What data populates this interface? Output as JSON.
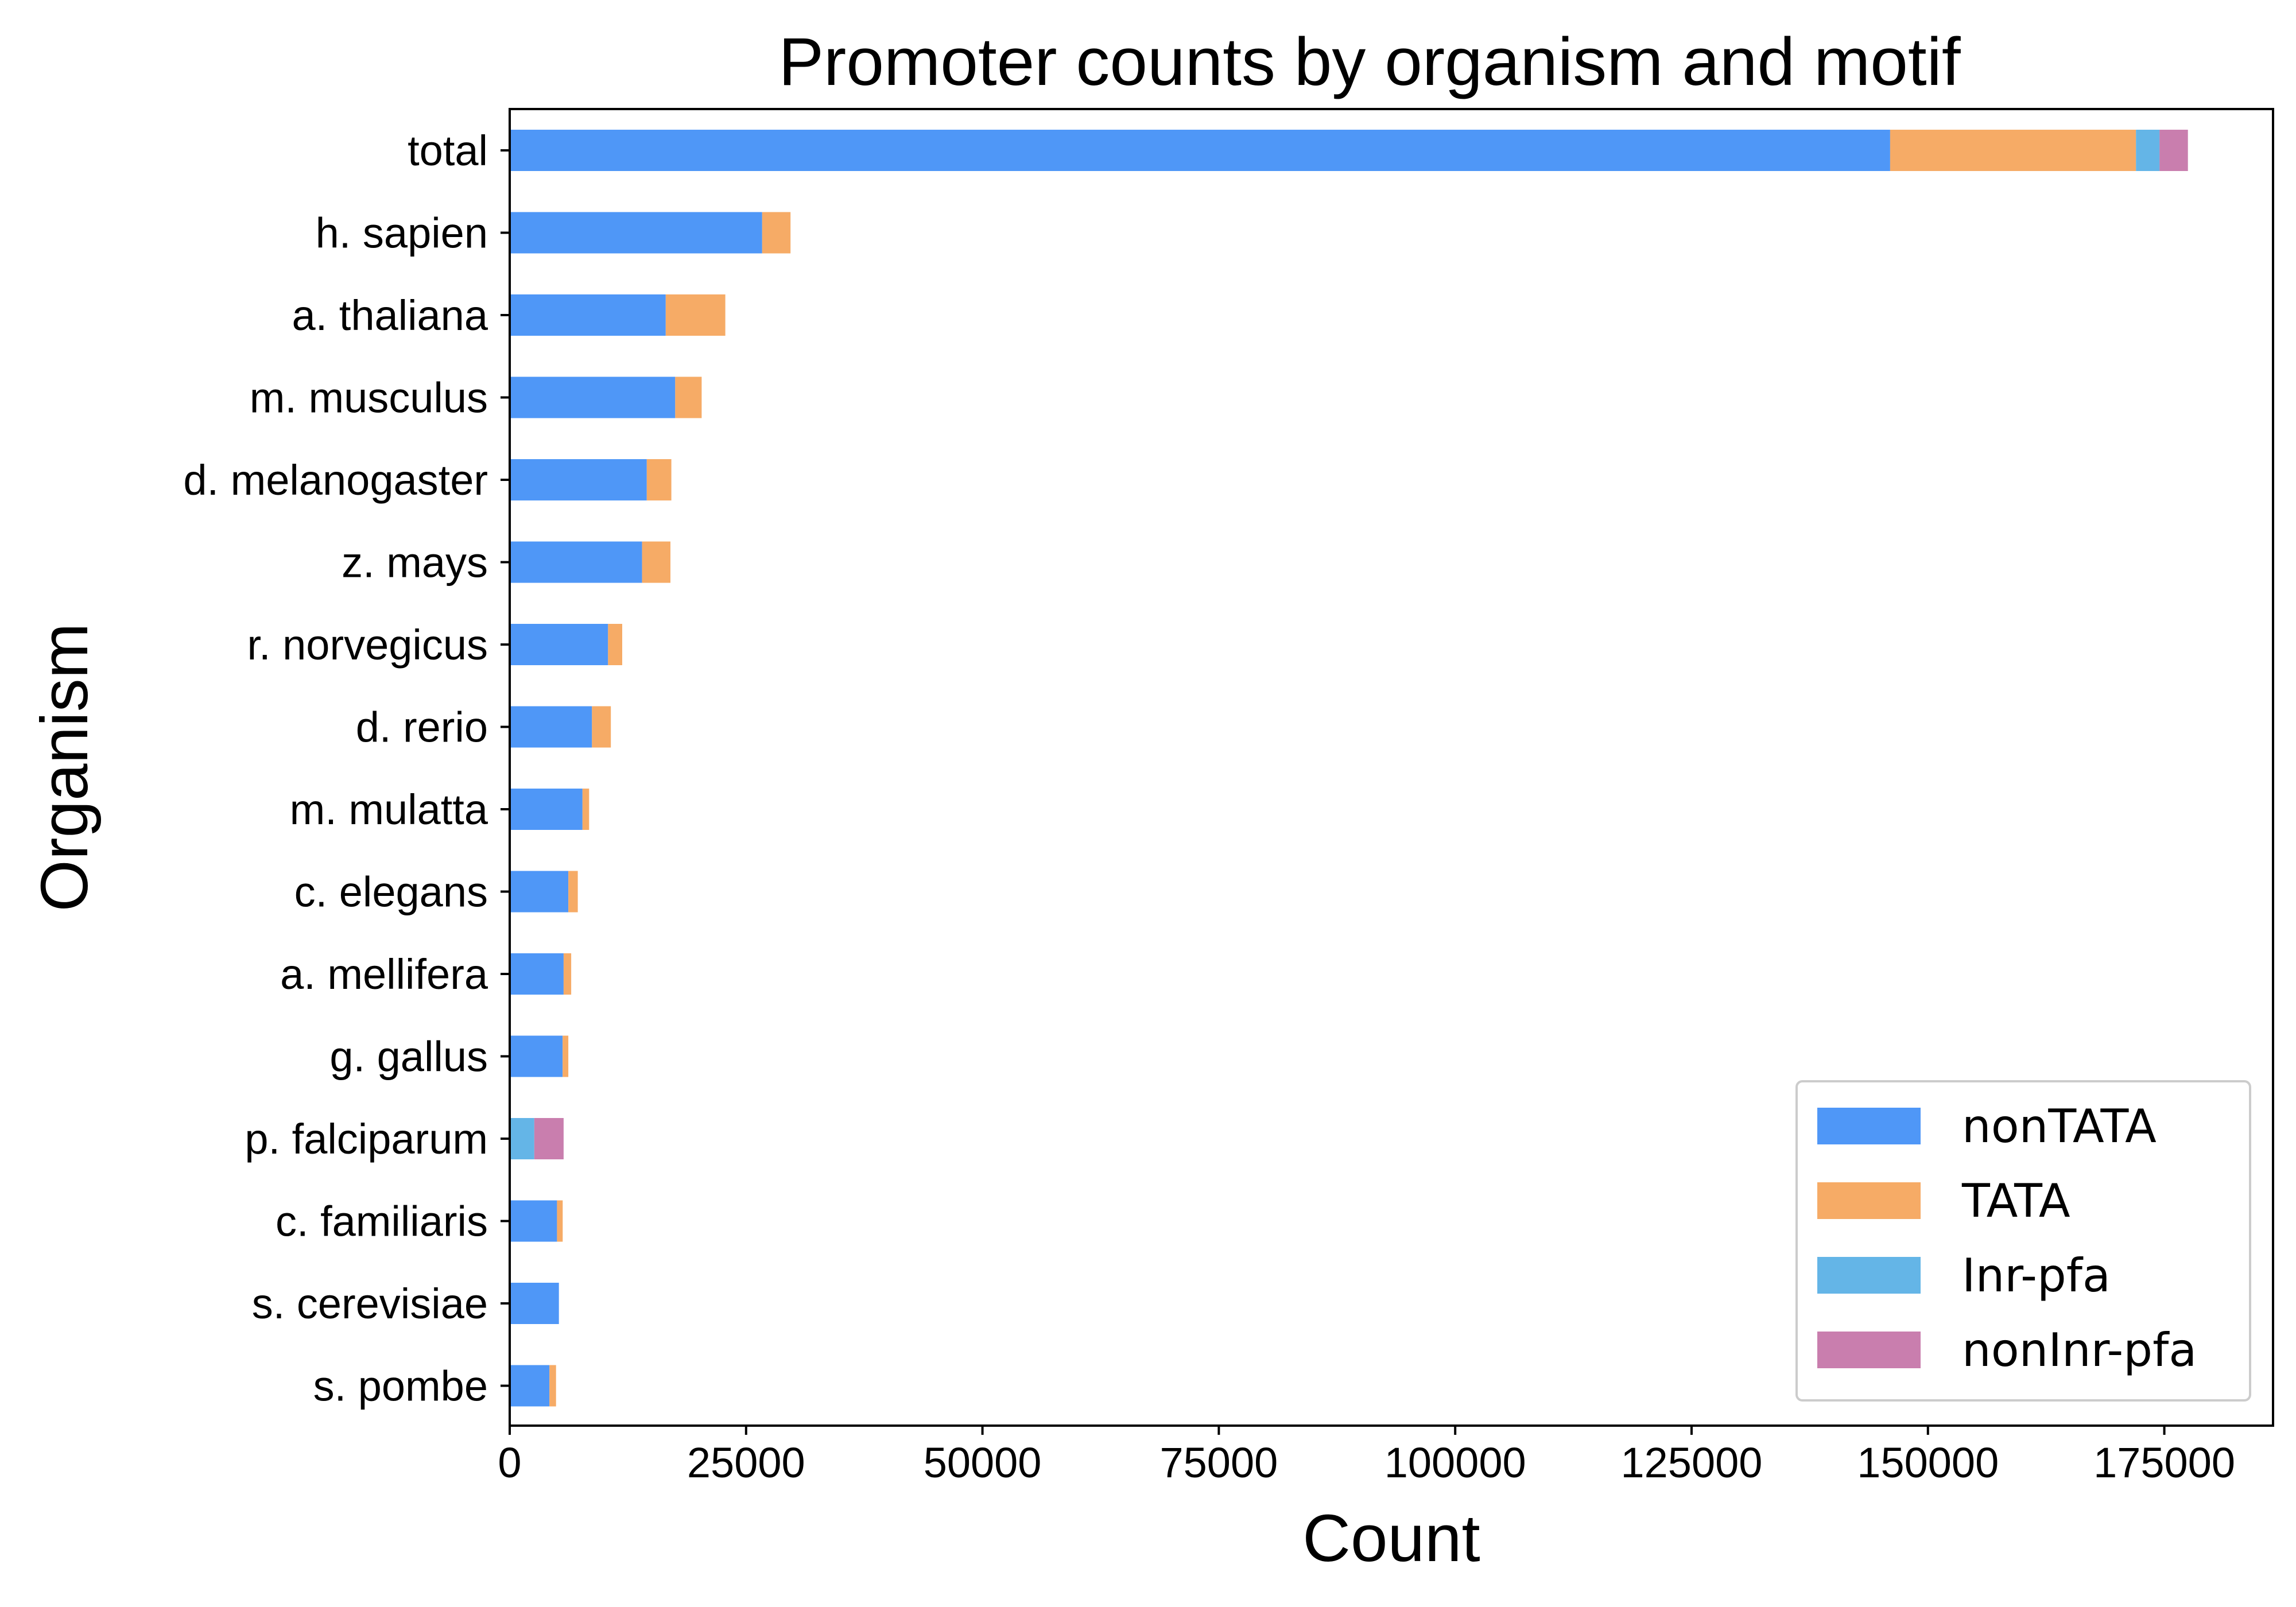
{
  "chart_data": {
    "type": "bar",
    "orientation": "horizontal",
    "stacked": true,
    "title": "Promoter counts by organism and motif",
    "xlabel": "Count",
    "ylabel": "Organism",
    "xlim": [
      0,
      186500
    ],
    "xticks": [
      0,
      25000,
      50000,
      75000,
      100000,
      125000,
      150000,
      175000
    ],
    "grid": false,
    "legend_position": "lower right",
    "categories": [
      "total",
      "h. sapien",
      "a. thaliana",
      "m. musculus",
      "d. melanogaster",
      "z. mays",
      "r. norvegicus",
      "d. rerio",
      "m. mulatta",
      "c. elegans",
      "a. mellifera",
      "g. gallus",
      "p. falciparum",
      "c. familiaris",
      "s. cerevisiae",
      "s. pombe"
    ],
    "series": [
      {
        "name": "nonTATA",
        "color": "#4f97f7",
        "values": [
          146000,
          26700,
          16500,
          17500,
          14500,
          14000,
          10400,
          8700,
          7700,
          6200,
          5700,
          5600,
          0,
          5000,
          5200,
          4200
        ]
      },
      {
        "name": "TATA",
        "color": "#f6ab66",
        "values": [
          26000,
          3000,
          6300,
          2800,
          2600,
          3000,
          1500,
          2000,
          700,
          1000,
          800,
          600,
          0,
          600,
          0,
          700
        ]
      },
      {
        "name": "Inr-pfa",
        "color": "#64b5e7",
        "values": [
          2500,
          0,
          0,
          0,
          0,
          0,
          0,
          0,
          0,
          0,
          0,
          0,
          2600,
          0,
          0,
          0
        ]
      },
      {
        "name": "nonInr-pfa",
        "color": "#c97eae",
        "values": [
          3000,
          0,
          0,
          0,
          0,
          0,
          0,
          0,
          0,
          0,
          0,
          0,
          3100,
          0,
          0,
          0
        ]
      }
    ]
  }
}
